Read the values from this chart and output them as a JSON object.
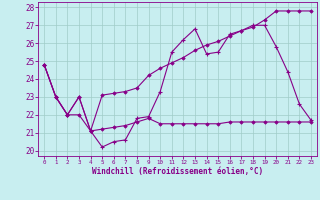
{
  "background_color": "#c8eef0",
  "grid_color": "#a0ccc8",
  "line_color": "#880088",
  "xlabel": "Windchill (Refroidissement éolien,°C)",
  "xlim": [
    -0.5,
    23.5
  ],
  "ylim": [
    19.7,
    28.3
  ],
  "yticks": [
    20,
    21,
    22,
    23,
    24,
    25,
    26,
    27,
    28
  ],
  "xticks": [
    0,
    1,
    2,
    3,
    4,
    5,
    6,
    7,
    8,
    9,
    10,
    11,
    12,
    13,
    14,
    15,
    16,
    17,
    18,
    19,
    20,
    21,
    22,
    23
  ],
  "line1_x": [
    0,
    1,
    2,
    3,
    4,
    5,
    6,
    7,
    8,
    9,
    10,
    11,
    12,
    13,
    14,
    15,
    16,
    17,
    18,
    19,
    20,
    21,
    22,
    23
  ],
  "line1_y": [
    24.8,
    23.0,
    22.0,
    23.0,
    21.1,
    20.2,
    20.5,
    20.6,
    21.8,
    21.9,
    23.3,
    25.5,
    26.2,
    26.8,
    25.4,
    25.5,
    26.5,
    26.7,
    27.0,
    27.0,
    25.8,
    24.4,
    22.6,
    21.7
  ],
  "line2_x": [
    0,
    1,
    2,
    3,
    4,
    5,
    6,
    7,
    8,
    9,
    10,
    11,
    12,
    13,
    14,
    15,
    16,
    17,
    18,
    19,
    20,
    21,
    22,
    23
  ],
  "line2_y": [
    24.8,
    23.0,
    22.0,
    23.0,
    21.1,
    23.1,
    23.2,
    23.3,
    23.5,
    24.2,
    24.6,
    24.9,
    25.2,
    25.6,
    25.9,
    26.1,
    26.4,
    26.7,
    26.9,
    27.3,
    27.8,
    27.8,
    27.8,
    27.8
  ],
  "line3_x": [
    0,
    1,
    2,
    3,
    4,
    5,
    6,
    7,
    8,
    9,
    10,
    11,
    12,
    13,
    14,
    15,
    16,
    17,
    18,
    19,
    20,
    21,
    22,
    23
  ],
  "line3_y": [
    24.8,
    23.0,
    22.0,
    22.0,
    21.1,
    21.2,
    21.3,
    21.4,
    21.6,
    21.8,
    21.5,
    21.5,
    21.5,
    21.5,
    21.5,
    21.5,
    21.6,
    21.6,
    21.6,
    21.6,
    21.6,
    21.6,
    21.6,
    21.6
  ]
}
